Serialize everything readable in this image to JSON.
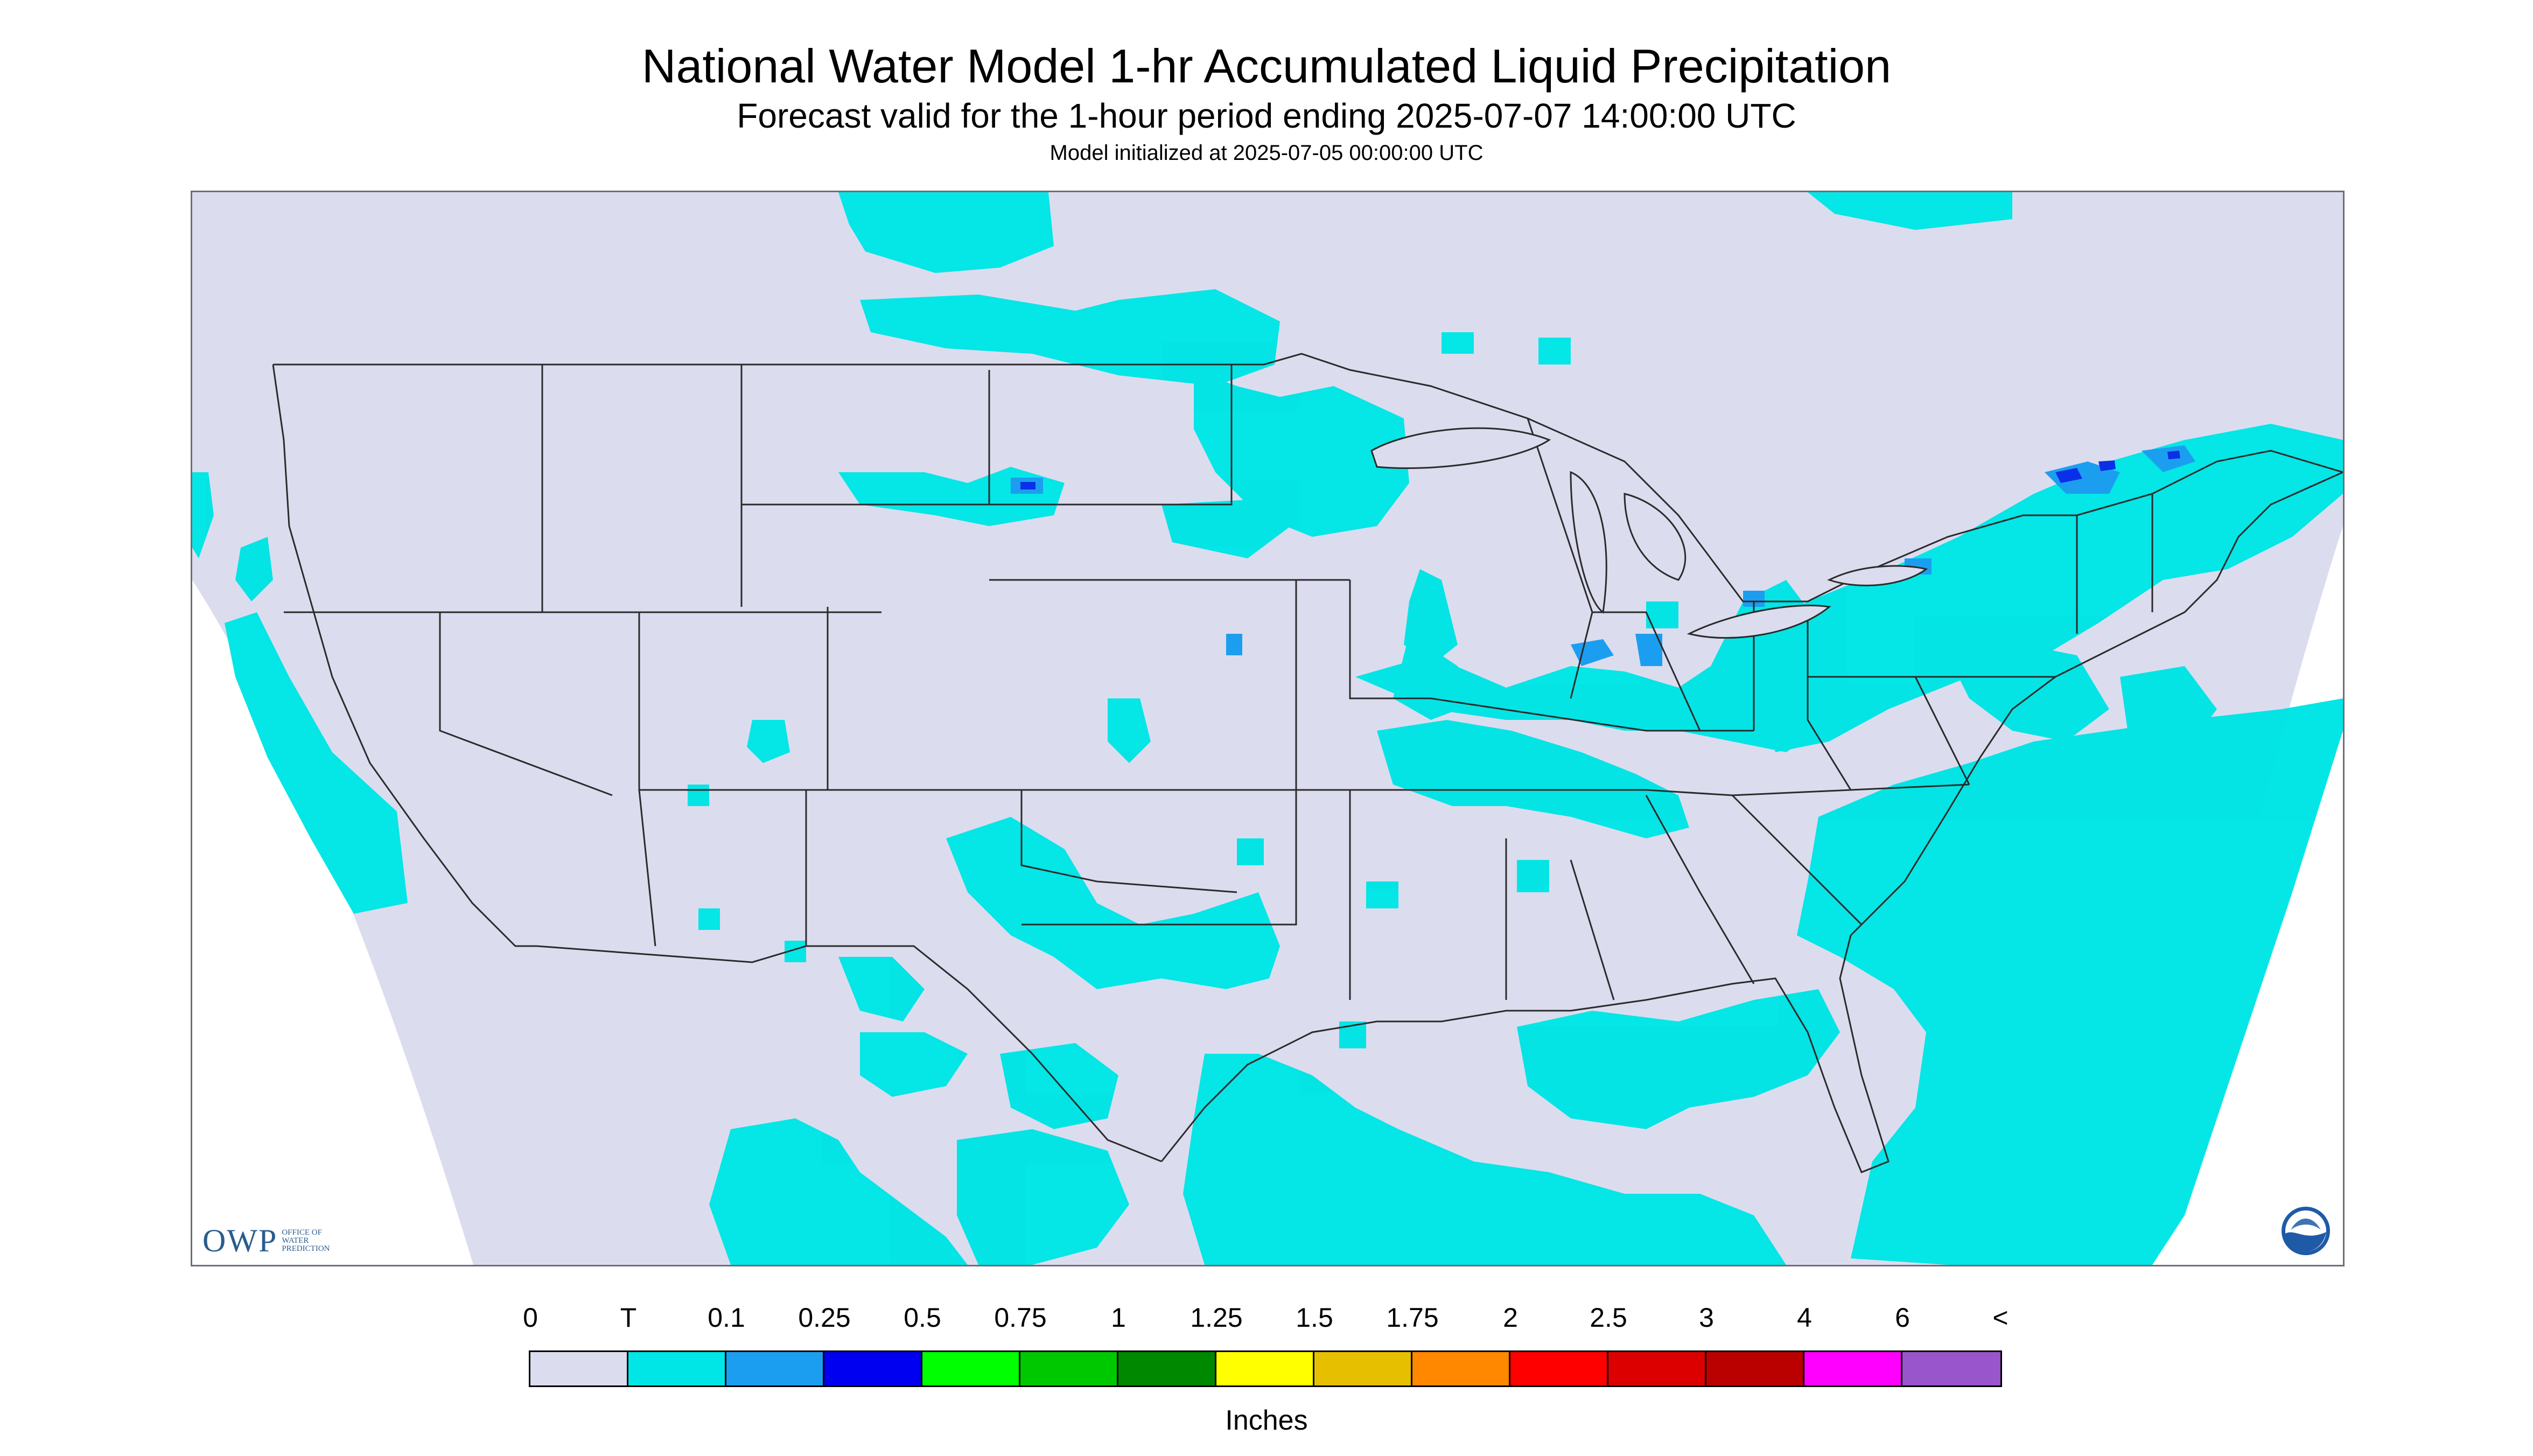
{
  "header": {
    "title": "National Water Model 1-hr Accumulated Liquid Precipitation",
    "subtitle": "Forecast valid for the 1-hour period ending 2025-07-07 14:00:00 UTC",
    "init": "Model initialized at 2025-07-05 00:00:00 UTC"
  },
  "logos": {
    "owp_mark": "OWP",
    "owp_text": [
      "OFFICE OF",
      "WATER",
      "PREDICTION"
    ],
    "noaa_icon": "noaa-logo-icon"
  },
  "colors": {
    "domain_fill": "#dcdcef",
    "outside_fill": "#ffffff",
    "boundary": "#2b2b2b",
    "trace": "#00e5e5",
    "light_blue": "#1c9ef0",
    "blue": "#0a2fe8"
  },
  "legend": {
    "labels": [
      "0",
      "T",
      "0.1",
      "0.25",
      "0.5",
      "0.75",
      "1",
      "1.25",
      "1.5",
      "1.75",
      "2",
      "2.5",
      "3",
      "4",
      "6",
      "<"
    ],
    "colors": [
      "#dcdcef",
      "#00e5e5",
      "#1c9ef0",
      "#0000f0",
      "#00ff00",
      "#00c800",
      "#008800",
      "#ffff00",
      "#e6c000",
      "#ff8800",
      "#ff0000",
      "#dd0000",
      "#bb0000",
      "#ff00ff",
      "#9955cc"
    ],
    "units": "Inches"
  }
}
